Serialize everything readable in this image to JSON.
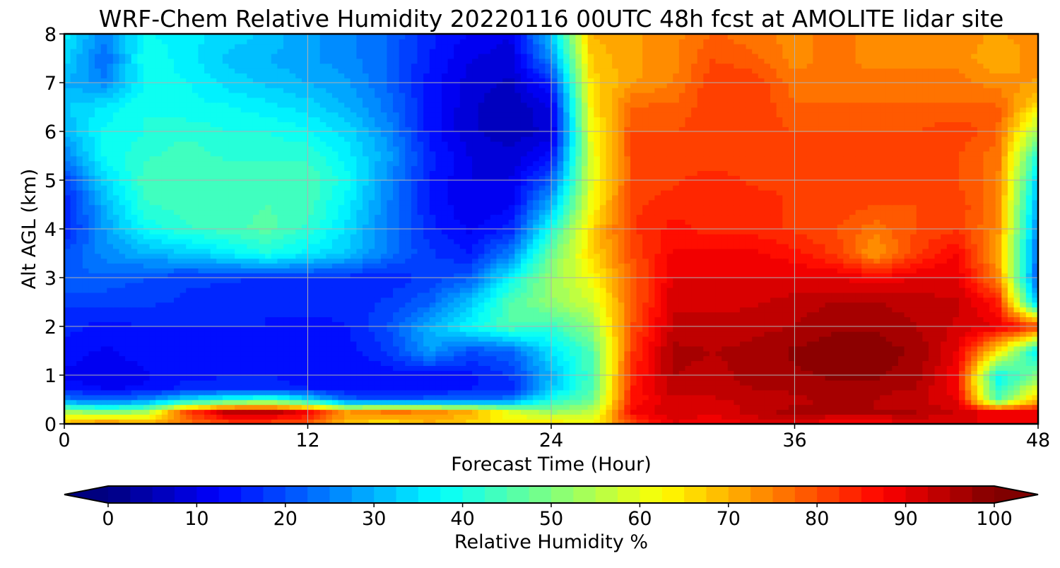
{
  "chart_data": {
    "type": "heatmap",
    "title": "WRF-Chem Relative Humidity 20220116 00UTC 48h fcst at AMOLITE lidar site",
    "xlabel": "Forecast Time (Hour)",
    "ylabel": "Alt AGL (km)",
    "xlim": [
      0,
      48
    ],
    "ylim": [
      0,
      8
    ],
    "xticks": [
      "0",
      "12",
      "24",
      "36",
      "48"
    ],
    "yticks": [
      "0",
      "1",
      "2",
      "3",
      "4",
      "5",
      "6",
      "7",
      "8"
    ],
    "grid": true,
    "colorbar": {
      "label": "Relative Humidity %",
      "colormap": "jet",
      "range": [
        0,
        100
      ],
      "extend": "both",
      "ticks": [
        "0",
        "10",
        "20",
        "30",
        "40",
        "50",
        "60",
        "70",
        "80",
        "90",
        "100"
      ]
    },
    "x": [
      0,
      2,
      4,
      6,
      8,
      10,
      12,
      14,
      16,
      18,
      20,
      22,
      24,
      26,
      28,
      30,
      32,
      34,
      36,
      38,
      40,
      42,
      44,
      46,
      48
    ],
    "y": [
      0,
      0.25,
      0.5,
      0.75,
      1,
      1.5,
      2,
      2.5,
      3,
      3.5,
      4,
      4.5,
      5,
      5.5,
      6,
      6.5,
      7,
      7.5,
      8
    ],
    "z": [
      [
        70,
        76,
        72,
        76,
        80,
        80,
        78,
        68,
        64,
        70,
        66,
        64,
        66,
        62,
        80,
        90,
        88,
        90,
        90,
        88,
        88,
        90,
        90,
        90,
        90
      ],
      [
        55,
        50,
        54,
        80,
        93,
        95,
        88,
        72,
        76,
        74,
        70,
        60,
        52,
        56,
        88,
        92,
        90,
        94,
        96,
        95,
        95,
        95,
        92,
        88,
        90
      ],
      [
        25,
        22,
        26,
        35,
        40,
        45,
        35,
        22,
        20,
        22,
        22,
        25,
        40,
        48,
        85,
        92,
        92,
        93,
        94,
        96,
        95,
        93,
        90,
        45,
        70
      ],
      [
        15,
        12,
        13,
        16,
        16,
        16,
        15,
        14,
        13,
        14,
        15,
        16,
        32,
        45,
        85,
        94,
        94,
        95,
        96,
        97,
        96,
        95,
        88,
        40,
        60
      ],
      [
        12,
        10,
        12,
        14,
        15,
        15,
        14,
        13,
        13,
        13,
        14,
        18,
        30,
        45,
        84,
        95,
        94,
        96,
        97,
        98,
        98,
        96,
        88,
        38,
        50
      ],
      [
        14,
        12,
        14,
        14,
        15,
        14,
        13,
        14,
        18,
        28,
        20,
        22,
        35,
        45,
        82,
        96,
        95,
        96,
        98,
        99,
        99,
        97,
        90,
        65,
        35
      ],
      [
        16,
        14,
        15,
        15,
        15,
        15,
        14,
        15,
        20,
        30,
        38,
        45,
        42,
        52,
        80,
        93,
        93,
        94,
        95,
        97,
        97,
        95,
        92,
        90,
        82
      ],
      [
        18,
        18,
        18,
        17,
        16,
        15,
        16,
        16,
        18,
        22,
        32,
        45,
        52,
        58,
        78,
        92,
        92,
        92,
        94,
        95,
        95,
        94,
        93,
        85,
        30
      ],
      [
        22,
        22,
        20,
        18,
        18,
        17,
        17,
        16,
        16,
        18,
        22,
        38,
        52,
        62,
        78,
        90,
        90,
        90,
        90,
        90,
        88,
        90,
        90,
        75,
        20
      ],
      [
        20,
        26,
        30,
        32,
        36,
        40,
        36,
        32,
        24,
        18,
        15,
        25,
        48,
        66,
        80,
        88,
        88,
        88,
        86,
        82,
        72,
        82,
        88,
        72,
        22
      ],
      [
        15,
        28,
        38,
        42,
        44,
        46,
        42,
        34,
        24,
        16,
        12,
        16,
        40,
        66,
        82,
        86,
        84,
        84,
        82,
        80,
        76,
        80,
        82,
        74,
        25
      ],
      [
        15,
        30,
        42,
        44,
        44,
        45,
        44,
        36,
        25,
        15,
        10,
        12,
        30,
        62,
        82,
        84,
        84,
        84,
        82,
        82,
        80,
        80,
        82,
        75,
        28
      ],
      [
        18,
        34,
        44,
        45,
        44,
        44,
        45,
        38,
        26,
        15,
        10,
        10,
        22,
        60,
        80,
        82,
        84,
        82,
        82,
        80,
        80,
        80,
        80,
        76,
        32
      ],
      [
        25,
        38,
        42,
        44,
        42,
        42,
        42,
        36,
        28,
        16,
        10,
        8,
        14,
        60,
        80,
        82,
        80,
        82,
        82,
        80,
        80,
        80,
        80,
        76,
        40
      ],
      [
        30,
        38,
        40,
        42,
        40,
        40,
        38,
        34,
        26,
        14,
        8,
        6,
        8,
        62,
        80,
        80,
        82,
        82,
        80,
        80,
        80,
        80,
        82,
        78,
        52
      ],
      [
        32,
        36,
        40,
        38,
        38,
        36,
        34,
        30,
        24,
        14,
        8,
        5,
        10,
        64,
        78,
        78,
        82,
        82,
        78,
        78,
        78,
        78,
        78,
        78,
        65
      ],
      [
        30,
        26,
        38,
        38,
        34,
        32,
        30,
        28,
        22,
        14,
        9,
        7,
        16,
        66,
        72,
        75,
        82,
        82,
        76,
        76,
        76,
        76,
        76,
        74,
        72
      ],
      [
        34,
        22,
        40,
        36,
        32,
        30,
        28,
        26,
        22,
        15,
        10,
        9,
        26,
        68,
        72,
        74,
        80,
        78,
        74,
        76,
        74,
        74,
        74,
        70,
        74
      ],
      [
        36,
        26,
        38,
        36,
        34,
        32,
        28,
        26,
        22,
        16,
        12,
        10,
        32,
        70,
        72,
        74,
        78,
        76,
        74,
        76,
        74,
        74,
        74,
        72,
        74
      ]
    ]
  }
}
